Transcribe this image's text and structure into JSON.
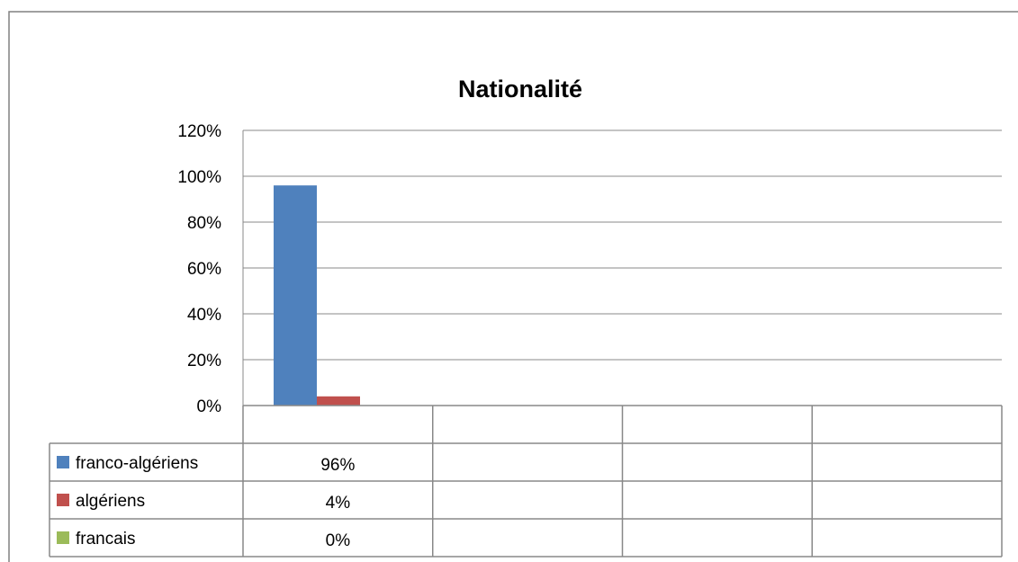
{
  "chart_data": {
    "type": "bar",
    "title": "Nationalité",
    "categories": [
      "",
      "",
      "",
      ""
    ],
    "ylim": [
      0,
      1.2
    ],
    "y_ticks": [
      "120%",
      "100%",
      "80%",
      "60%",
      "40%",
      "20%",
      "0%"
    ],
    "y_tick_values": [
      1.2,
      1.0,
      0.8,
      0.6,
      0.4,
      0.2,
      0.0
    ],
    "grid": true,
    "legend_placement": "data-table",
    "series": [
      {
        "name": "franco-algériens",
        "color": "#4F81BD",
        "values": [
          0.96,
          null,
          null,
          null
        ],
        "labels": [
          "96%",
          "",
          "",
          ""
        ]
      },
      {
        "name": "algériens",
        "color": "#C0504D",
        "values": [
          0.04,
          null,
          null,
          null
        ],
        "labels": [
          "4%",
          "",
          "",
          ""
        ]
      },
      {
        "name": "francais",
        "color": "#9BBB59",
        "values": [
          0.0,
          null,
          null,
          null
        ],
        "labels": [
          "0%",
          "",
          "",
          ""
        ]
      }
    ]
  }
}
